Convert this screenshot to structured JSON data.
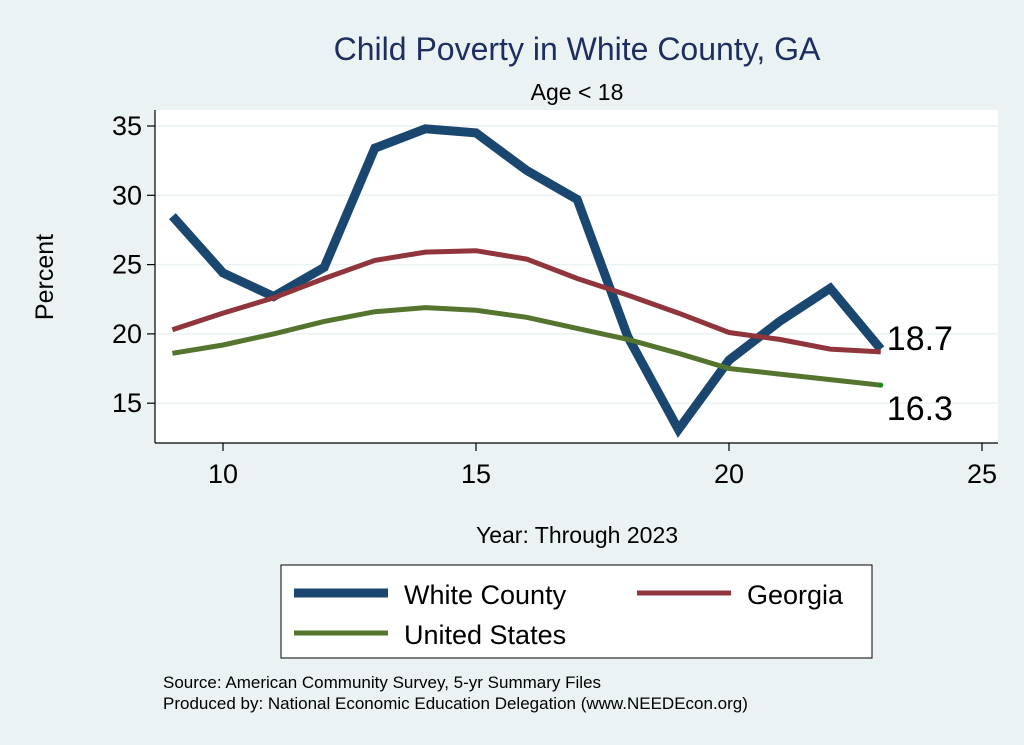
{
  "chart_data": {
    "type": "line",
    "title": "Child Poverty in White County, GA",
    "subtitle": "Age < 18",
    "xlabel": "Year: Through 2023",
    "ylabel": "Percent",
    "xlim": [
      9,
      25
    ],
    "ylim": [
      12,
      36
    ],
    "xticks": [
      10,
      15,
      20,
      25
    ],
    "yticks": [
      15,
      20,
      25,
      30,
      35
    ],
    "grid": true,
    "series": [
      {
        "name": "White County",
        "color": "#1a476f",
        "x": [
          9,
          10,
          11,
          12,
          13,
          14,
          15,
          16,
          17,
          18,
          19,
          20,
          21,
          22,
          23
        ],
        "values": [
          28.5,
          24.4,
          22.7,
          24.8,
          33.4,
          34.8,
          34.5,
          31.8,
          29.7,
          19.8,
          13.1,
          18.1,
          20.9,
          23.3,
          18.9
        ]
      },
      {
        "name": "Georgia",
        "color": "#90353b",
        "x": [
          9,
          10,
          11,
          12,
          13,
          14,
          15,
          16,
          17,
          18,
          19,
          20,
          21,
          22,
          23
        ],
        "values": [
          20.3,
          21.5,
          22.6,
          24.0,
          25.3,
          25.9,
          26.0,
          25.4,
          24.0,
          22.8,
          21.5,
          20.1,
          19.6,
          18.9,
          18.7
        ]
      },
      {
        "name": "United States",
        "color": "#55752f",
        "x": [
          9,
          10,
          11,
          12,
          13,
          14,
          15,
          16,
          17,
          18,
          19,
          20,
          21,
          22,
          23
        ],
        "values": [
          18.6,
          19.2,
          20.0,
          20.9,
          21.6,
          21.9,
          21.7,
          21.2,
          20.4,
          19.6,
          18.6,
          17.5,
          17.1,
          16.7,
          16.3
        ]
      }
    ],
    "annotations": [
      {
        "text": "18.7",
        "x": 23,
        "y": 18.7
      },
      {
        "text": "16.3",
        "x": 23,
        "y": 16.3
      }
    ],
    "legend": {
      "placement": "bottom",
      "entries": [
        "White County",
        "Georgia",
        "United States"
      ]
    }
  },
  "footer": {
    "source": "Source: American Community Survey, 5-yr Summary Files",
    "produced_by": "Produced by: National Economic Education Delegation (www.NEEDEcon.org)"
  },
  "colors": {
    "background": "#eaf2f3",
    "plot_background": "#ffffff",
    "grid": "#eaf2f3",
    "title": "#1e2e5e",
    "end_dot": "#1a8a1a"
  }
}
